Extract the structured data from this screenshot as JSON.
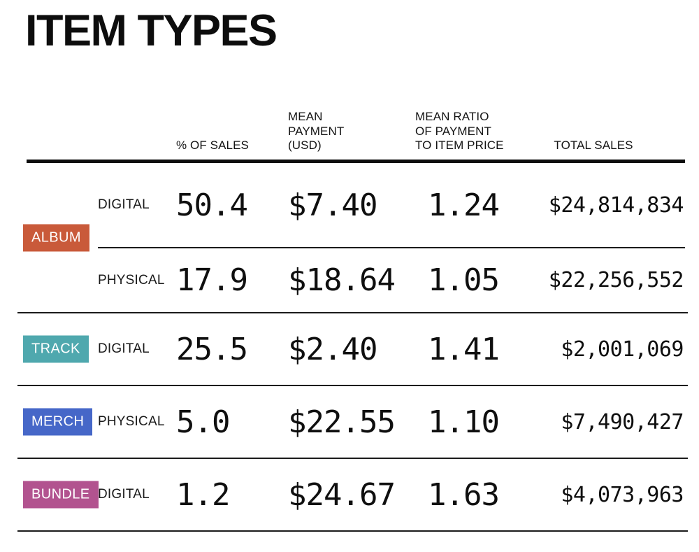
{
  "page": {
    "title": "ITEM TYPES"
  },
  "chart_data": {
    "type": "table",
    "title": "ITEM TYPES",
    "column_headers": {
      "pct": "% OF SALES",
      "payment": "MEAN\nPAYMENT\n(USD)",
      "ratio": "MEAN RATIO\nOF PAYMENT\nTO ITEM PRICE",
      "total": "TOTAL SALES"
    },
    "groups": [
      {
        "label": "ALBUM",
        "color": "#c95a3a",
        "rows": [
          {
            "channel": "DIGITAL",
            "pct_of_sales": "50.4",
            "mean_payment": "$7.40",
            "mean_ratio": "1.24",
            "total_sales": "$24,814,834"
          },
          {
            "channel": "PHYSICAL",
            "pct_of_sales": "17.9",
            "mean_payment": "$18.64",
            "mean_ratio": "1.05",
            "total_sales": "$22,256,552"
          }
        ]
      },
      {
        "label": "TRACK",
        "color": "#4fa8ae",
        "rows": [
          {
            "channel": "DIGITAL",
            "pct_of_sales": "25.5",
            "mean_payment": "$2.40",
            "mean_ratio": "1.41",
            "total_sales": "$2,001,069"
          }
        ]
      },
      {
        "label": "MERCH",
        "color": "#4667c8",
        "rows": [
          {
            "channel": "PHYSICAL",
            "pct_of_sales": "5.0",
            "mean_payment": "$22.55",
            "mean_ratio": "1.10",
            "total_sales": "$7,490,427"
          }
        ]
      },
      {
        "label": "BUNDLE",
        "color": "#b2538f",
        "rows": [
          {
            "channel": "DIGITAL",
            "pct_of_sales": "1.2",
            "mean_payment": "$24.67",
            "mean_ratio": "1.63",
            "total_sales": "$4,073,963"
          }
        ]
      }
    ]
  }
}
